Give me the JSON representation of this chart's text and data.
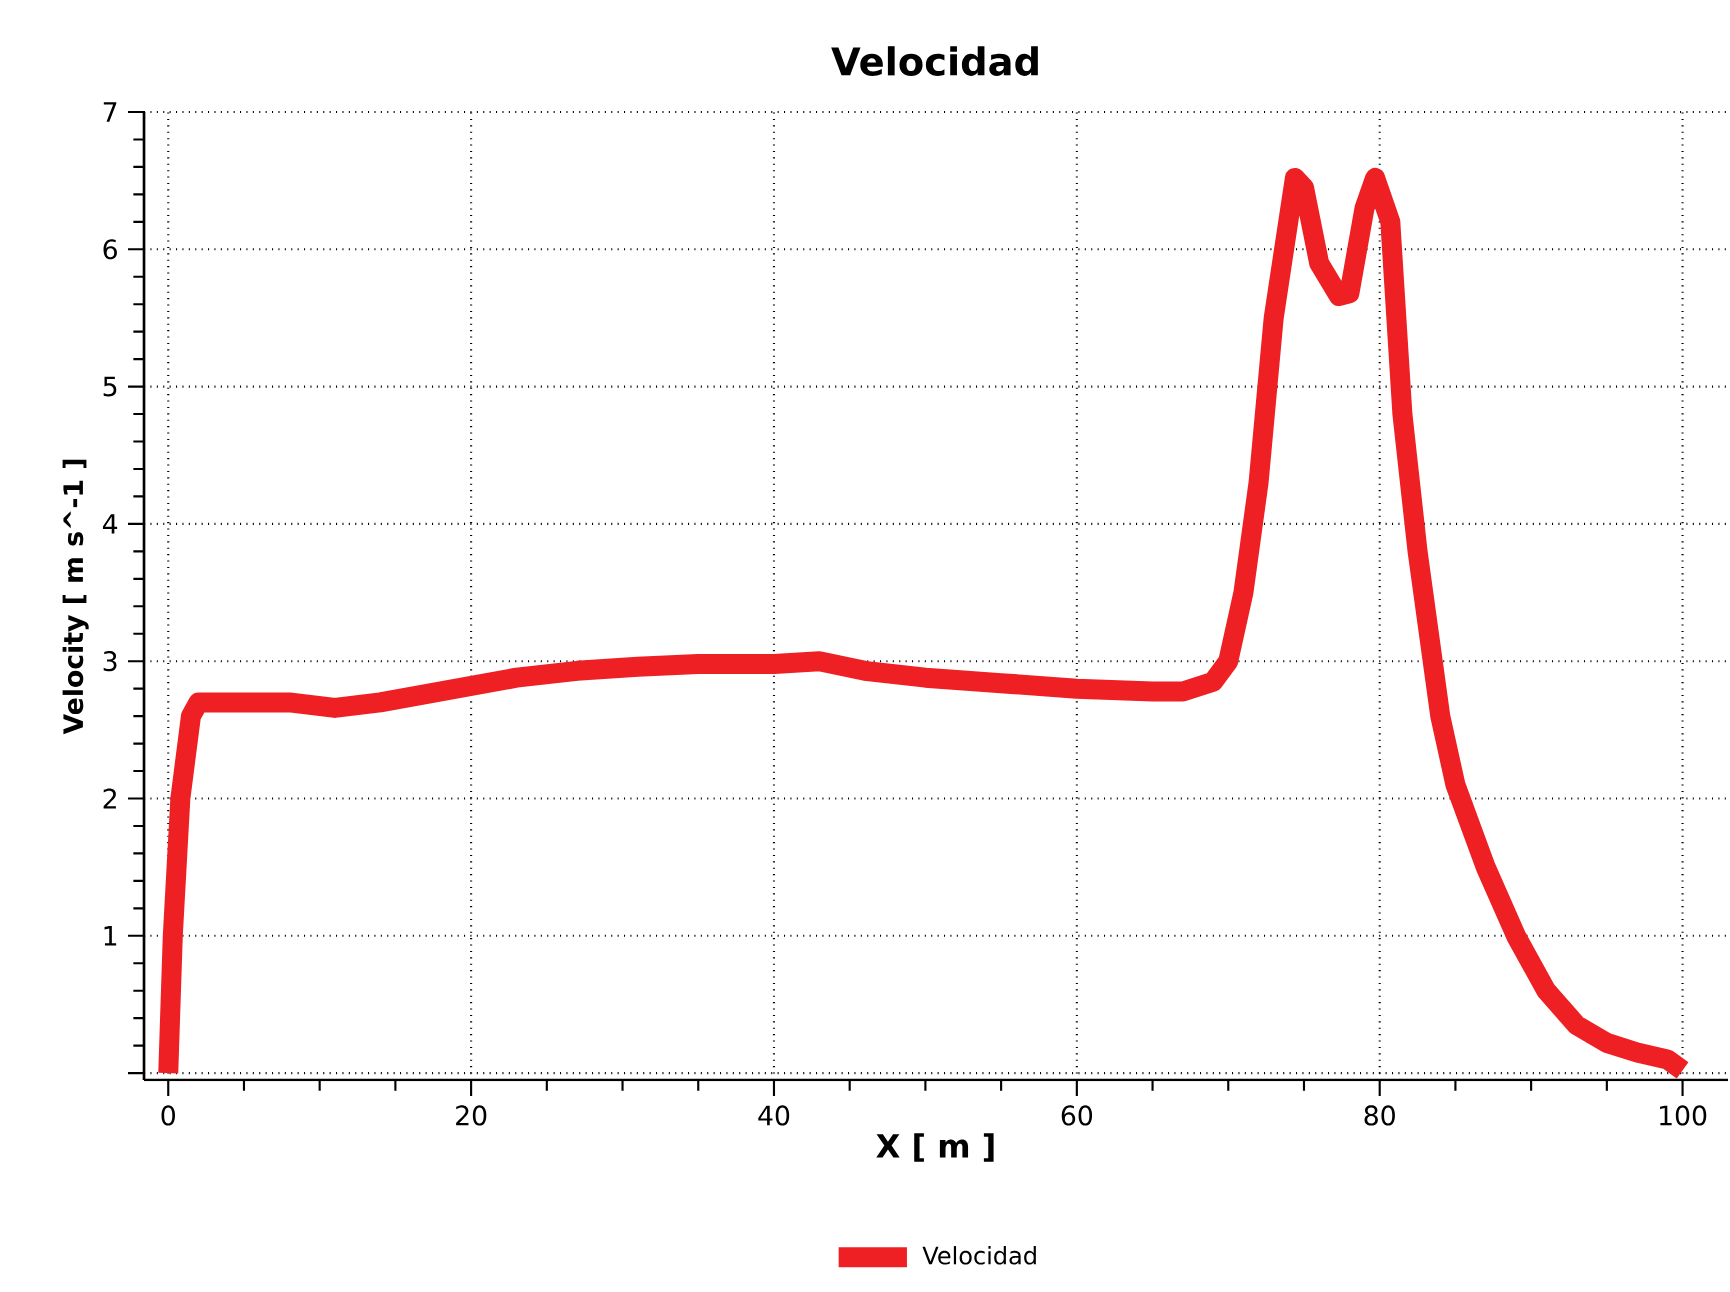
{
  "chart_data": {
    "type": "line",
    "title": "Velocidad",
    "xlabel": "X [ m ]",
    "ylabel": "Velocity [ m s^-1 ]",
    "x": [
      0,
      0.3,
      0.8,
      1.5,
      2,
      5,
      8,
      11,
      14,
      17,
      20,
      23,
      27,
      31,
      35,
      40,
      43,
      46,
      50,
      55,
      60,
      65,
      67,
      69,
      70,
      71,
      72,
      73,
      74.4,
      75,
      76,
      77.3,
      78,
      79,
      79.7,
      80.7,
      81.5,
      82.5,
      84,
      85,
      87,
      89,
      91,
      93,
      95,
      97,
      99,
      100
    ],
    "series": [
      {
        "name": "Velocidad",
        "color": "#ee2024",
        "values": [
          0,
          1.0,
          2.0,
          2.6,
          2.7,
          2.7,
          2.7,
          2.66,
          2.7,
          2.76,
          2.82,
          2.88,
          2.93,
          2.96,
          2.98,
          2.98,
          3.0,
          2.93,
          2.88,
          2.84,
          2.8,
          2.78,
          2.78,
          2.85,
          3.0,
          3.5,
          4.3,
          5.5,
          6.52,
          6.45,
          5.9,
          5.66,
          5.68,
          6.3,
          6.52,
          6.2,
          4.8,
          3.8,
          2.6,
          2.1,
          1.5,
          1.0,
          0.6,
          0.35,
          0.22,
          0.15,
          0.1,
          0.02
        ]
      }
    ],
    "xlim": [
      -1.6,
      103
    ],
    "ylim": [
      -0.05,
      7
    ],
    "xticks": [
      0,
      20,
      40,
      60,
      80,
      100
    ],
    "yticks": [
      {
        "value": 0,
        "label": null
      },
      1,
      2,
      3,
      4,
      5,
      6,
      7
    ],
    "grid": true,
    "legend": "bottom"
  }
}
